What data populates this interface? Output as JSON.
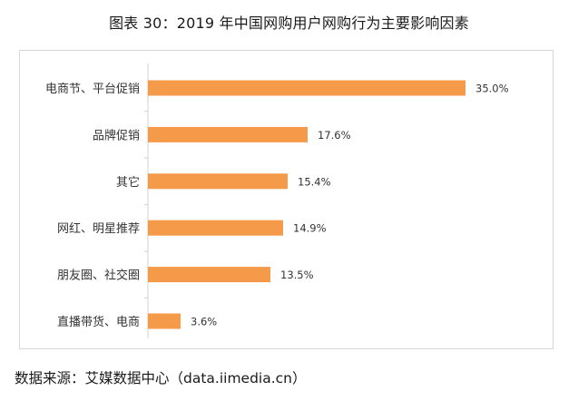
{
  "title": "图表 30：2019 年中国网购用户网购行为主要影响因素",
  "source": "数据来源：艾媒数据中心（data.iimedia.cn）",
  "chart_data": {
    "type": "bar",
    "orientation": "horizontal",
    "title": "图表 30：2019 年中国网购用户网购行为主要影响因素",
    "xlabel": "",
    "ylabel": "",
    "xlim": [
      0,
      40
    ],
    "grid": false,
    "legend": "none",
    "bar_color": "#F59A48",
    "categories": [
      "电商节、平台促销",
      "品牌促销",
      "其它",
      "网红、明星推荐",
      "朋友圈、社交圈",
      "直播带货、电商"
    ],
    "values": [
      35.0,
      17.6,
      15.4,
      14.9,
      13.5,
      3.6
    ],
    "value_labels": [
      "35.0%",
      "17.6%",
      "15.4%",
      "14.9%",
      "13.5%",
      "3.6%"
    ],
    "unit": "%"
  }
}
